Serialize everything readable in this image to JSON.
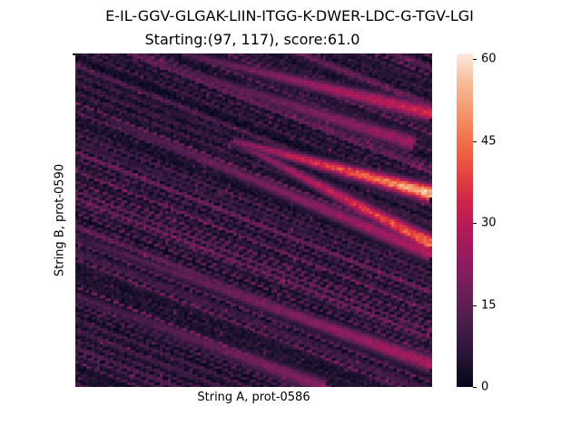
{
  "chart_data": {
    "type": "heatmap",
    "title": "E-IL-GGV-GLGAK-LIIN-ITGG-K-DWER-LDC-G-TGV-LGI",
    "subtitle": "Starting:(97, 117), score:61.0",
    "xlabel": "String A, prot-0586",
    "ylabel": "String B, prot-0590",
    "colorbar": {
      "min": 0,
      "max": 61,
      "ticks": [
        0,
        15,
        30,
        45,
        60
      ],
      "colormap": "rocket"
    },
    "grid": false,
    "value_range": [
      0,
      61
    ],
    "max_score": 61.0,
    "start": [
      97,
      117
    ],
    "diagonal_bands": [
      {
        "peak": 61,
        "from": [
          0.44,
          0.26
        ],
        "to": [
          1.0,
          0.42
        ]
      },
      {
        "peak": 50,
        "from": [
          0.44,
          0.26
        ],
        "to": [
          1.0,
          0.57
        ]
      },
      {
        "peak": 38,
        "from": [
          0.3,
          0.0
        ],
        "to": [
          1.0,
          0.18
        ]
      },
      {
        "peak": 32,
        "from": [
          0.1,
          0.2
        ],
        "to": [
          1.0,
          0.6
        ]
      },
      {
        "peak": 30,
        "from": [
          0.0,
          0.55
        ],
        "to": [
          1.0,
          0.93
        ]
      },
      {
        "peak": 28,
        "from": [
          0.2,
          0.02
        ],
        "to": [
          0.95,
          0.27
        ]
      },
      {
        "peak": 24,
        "from": [
          0.0,
          0.72
        ],
        "to": [
          0.7,
          1.0
        ]
      }
    ]
  }
}
